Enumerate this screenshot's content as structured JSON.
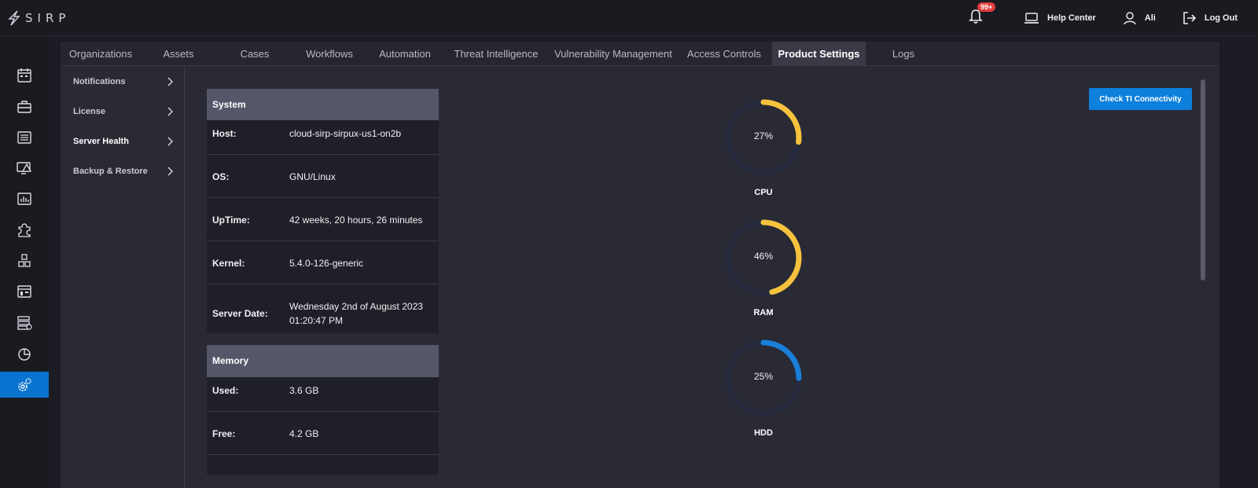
{
  "brand": {
    "name": "SIRP"
  },
  "header": {
    "notifications_badge": "99+",
    "help_center": "Help Center",
    "user": "Ali",
    "logout": "Log Out"
  },
  "rail": [
    {
      "icon": "calendar-icon"
    },
    {
      "icon": "briefcase-icon"
    },
    {
      "icon": "list-icon"
    },
    {
      "icon": "monitor-alert-icon"
    },
    {
      "icon": "chart-icon"
    },
    {
      "icon": "puzzle-icon"
    },
    {
      "icon": "cubes-icon"
    },
    {
      "icon": "dashboard-icon"
    },
    {
      "icon": "database-icon"
    },
    {
      "icon": "pie-chart-icon"
    },
    {
      "icon": "gear-icon",
      "active": true
    }
  ],
  "tabs": [
    {
      "label": "Organizations"
    },
    {
      "label": "Assets"
    },
    {
      "label": "Cases"
    },
    {
      "label": "Workflows"
    },
    {
      "label": "Automation"
    },
    {
      "label": "Threat Intelligence"
    },
    {
      "label": "Vulnerability Management"
    },
    {
      "label": "Access Controls"
    },
    {
      "label": "Product Settings",
      "active": true
    },
    {
      "label": "Logs"
    }
  ],
  "subnav": [
    {
      "label": "Notifications"
    },
    {
      "label": "License"
    },
    {
      "label": "Server Health",
      "active": true
    },
    {
      "label": "Backup & Restore"
    }
  ],
  "system": {
    "title": "System",
    "rows": [
      {
        "key": "Host:",
        "value": "cloud-sirp-sirpux-us1-on2b"
      },
      {
        "key": "OS:",
        "value": "GNU/Linux"
      },
      {
        "key": "UpTime:",
        "value": "42 weeks, 20 hours, 26 minutes"
      },
      {
        "key": "Kernel:",
        "value": "5.4.0-126-generic"
      },
      {
        "key": "Server Date:",
        "value_line1": "Wednesday 2nd of August 2023",
        "value_line2": "01:20:47 PM"
      }
    ]
  },
  "memory": {
    "title": "Memory",
    "rows": [
      {
        "key": "Used:",
        "value": "3.6 GB"
      },
      {
        "key": "Free:",
        "value": "4.2 GB"
      }
    ]
  },
  "gauges": [
    {
      "label": "CPU",
      "percent": 27,
      "display": "27%",
      "color": "#f6c23e"
    },
    {
      "label": "RAM",
      "percent": 46,
      "display": "46%",
      "color": "#f6c23e"
    },
    {
      "label": "HDD",
      "percent": 25,
      "display": "25%",
      "color": "#1a7fd8"
    }
  ],
  "actions": {
    "check_ti": "Check TI Connectivity"
  }
}
